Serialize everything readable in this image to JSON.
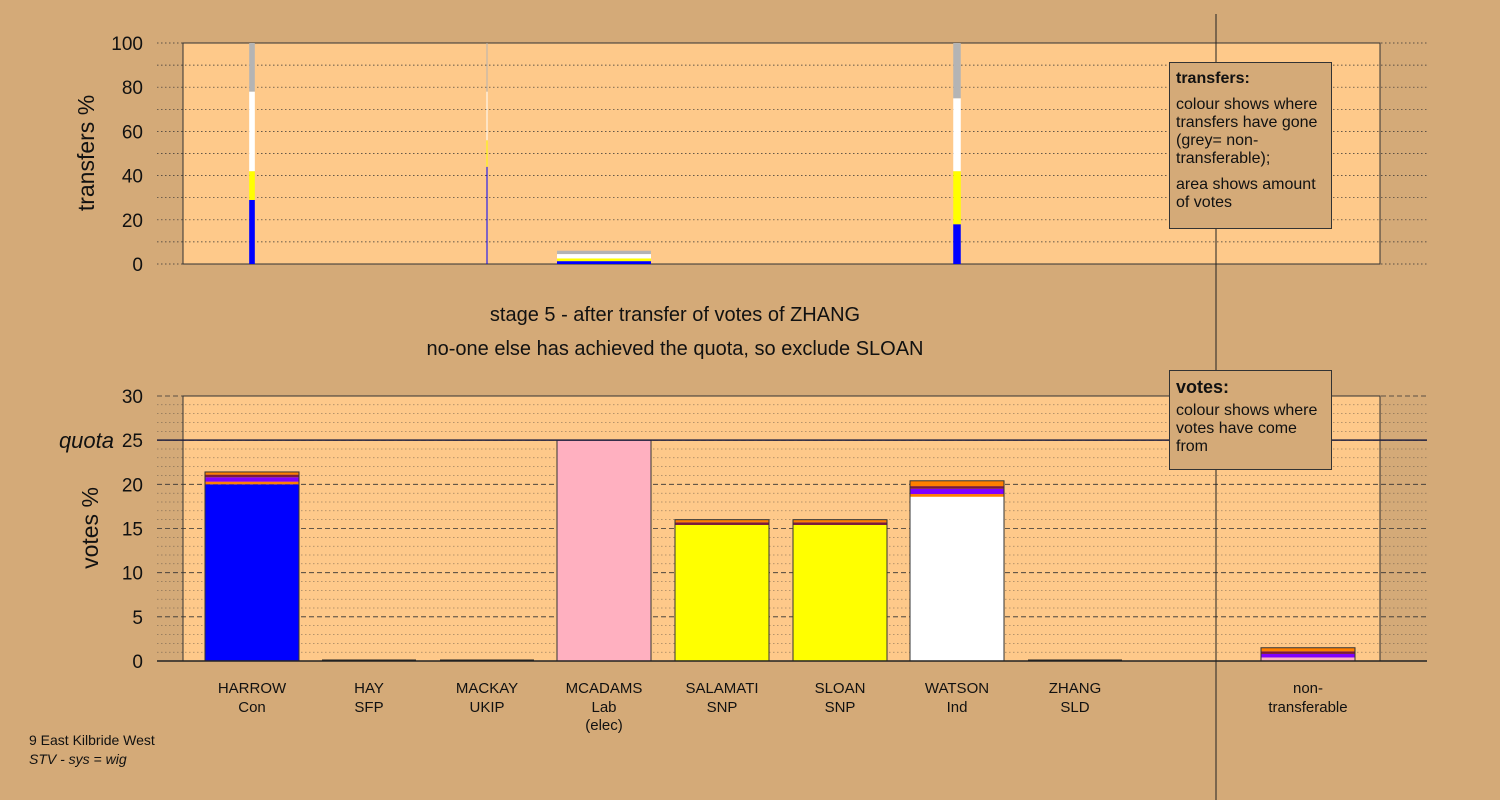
{
  "captions": {
    "line1": "stage 5 - after transfer of votes of ZHANG",
    "line2": "no-one else has achieved the quota, so exclude SLOAN"
  },
  "footer": {
    "line1": "9 East Kilbride West",
    "line2": "STV - sys = wig"
  },
  "legend_transfers": {
    "title": "transfers:",
    "p1": "colour shows where transfers have gone (grey= non-transferable);",
    "p2": "area shows amount of votes"
  },
  "legend_votes": {
    "title": "votes:",
    "p1": "colour shows where votes have come from"
  },
  "colors": {
    "background": "#d4aa78",
    "plot_bg": "#fec98a",
    "Con": "#0000ff",
    "SNP": "#ffff00",
    "Lab": "#ffb0c0",
    "Ind": "#ffffff",
    "UKIP": "#8000ff",
    "SFP": "#ff8000",
    "SLD": "#ff7f00",
    "other": "#7a1a3a",
    "nontransferable": "#b4b4b4"
  },
  "chart_data": [
    {
      "type": "bar",
      "stacked": true,
      "ylabel": "transfers %",
      "ylim": [
        0,
        100
      ],
      "yticks": [
        0,
        20,
        40,
        60,
        80,
        100
      ],
      "grid": true,
      "categories": [
        "HARROW",
        "HAY",
        "MACKAY",
        "MCADAMS",
        "SALAMATI",
        "SLOAN",
        "WATSON",
        "ZHANG",
        "non-transferable"
      ],
      "bars": [
        {
          "category": "HARROW",
          "relative_width": 0.06,
          "segments": [
            {
              "to": "Con",
              "value": 29
            },
            {
              "to": "SNP",
              "value": 13
            },
            {
              "to": "Ind",
              "value": 36
            },
            {
              "to": "non-transferable",
              "value": 22
            }
          ]
        },
        {
          "category": "MACKAY",
          "relative_width": 0.01,
          "segments": [
            {
              "to": "Con",
              "value": 44
            },
            {
              "to": "SNP",
              "value": 12
            },
            {
              "to": "Ind",
              "value": 22
            },
            {
              "to": "non-transferable",
              "value": 22
            }
          ]
        },
        {
          "category": "MCADAMS",
          "relative_width": 1.0,
          "segments": [
            {
              "to": "Con",
              "value": 1.3
            },
            {
              "to": "SNP",
              "value": 1.2
            },
            {
              "to": "Ind",
              "value": 2.0
            },
            {
              "to": "non-transferable",
              "value": 1.5
            }
          ]
        },
        {
          "category": "WATSON",
          "relative_width": 0.08,
          "segments": [
            {
              "to": "Con",
              "value": 18
            },
            {
              "to": "SNP",
              "value": 24
            },
            {
              "to": "Ind",
              "value": 33
            },
            {
              "to": "non-transferable",
              "value": 25
            }
          ]
        }
      ]
    },
    {
      "type": "bar",
      "stacked": true,
      "ylabel": "votes %",
      "ylim": [
        0,
        30
      ],
      "yticks": [
        0,
        5,
        10,
        15,
        20,
        25,
        30
      ],
      "grid": true,
      "quota": 25,
      "quota_label": "quota",
      "categories": [
        {
          "name": "HARROW",
          "party": "Con"
        },
        {
          "name": "HAY",
          "party": "SFP"
        },
        {
          "name": "MACKAY",
          "party": "UKIP"
        },
        {
          "name": "MCADAMS",
          "party": "Lab",
          "note": "(elec)"
        },
        {
          "name": "SALAMATI",
          "party": "SNP"
        },
        {
          "name": "SLOAN",
          "party": "SNP"
        },
        {
          "name": "WATSON",
          "party": "Ind"
        },
        {
          "name": "ZHANG",
          "party": "SLD"
        },
        {
          "name": "non-",
          "party": "transferable"
        }
      ],
      "bars": [
        {
          "category": "HARROW",
          "segments": [
            {
              "from": "Con",
              "value": 20.0
            },
            {
              "from": "SFP",
              "value": 0.3
            },
            {
              "from": "UKIP",
              "value": 0.5
            },
            {
              "from": "other",
              "value": 0.3
            },
            {
              "from": "SLD",
              "value": 0.3
            }
          ]
        },
        {
          "category": "HAY",
          "segments": []
        },
        {
          "category": "MACKAY",
          "segments": []
        },
        {
          "category": "MCADAMS",
          "segments": [
            {
              "from": "Lab",
              "value": 25.0
            }
          ]
        },
        {
          "category": "SALAMATI",
          "segments": [
            {
              "from": "SNP",
              "value": 15.4
            },
            {
              "from": "other",
              "value": 0.3
            },
            {
              "from": "SFP",
              "value": 0.3
            }
          ]
        },
        {
          "category": "SLOAN",
          "segments": [
            {
              "from": "SNP",
              "value": 15.4
            },
            {
              "from": "other",
              "value": 0.3
            },
            {
              "from": "SFP",
              "value": 0.3
            }
          ]
        },
        {
          "category": "WATSON",
          "segments": [
            {
              "from": "Ind",
              "value": 18.6
            },
            {
              "from": "SFP",
              "value": 0.3
            },
            {
              "from": "UKIP",
              "value": 0.6
            },
            {
              "from": "other",
              "value": 0.3
            },
            {
              "from": "SLD",
              "value": 0.6
            }
          ]
        },
        {
          "category": "ZHANG",
          "segments": []
        },
        {
          "category": "non-",
          "segments": [
            {
              "from": "Lab",
              "value": 0.4
            },
            {
              "from": "UKIP",
              "value": 0.4
            },
            {
              "from": "other",
              "value": 0.3
            },
            {
              "from": "SLD",
              "value": 0.4
            }
          ]
        }
      ]
    }
  ]
}
